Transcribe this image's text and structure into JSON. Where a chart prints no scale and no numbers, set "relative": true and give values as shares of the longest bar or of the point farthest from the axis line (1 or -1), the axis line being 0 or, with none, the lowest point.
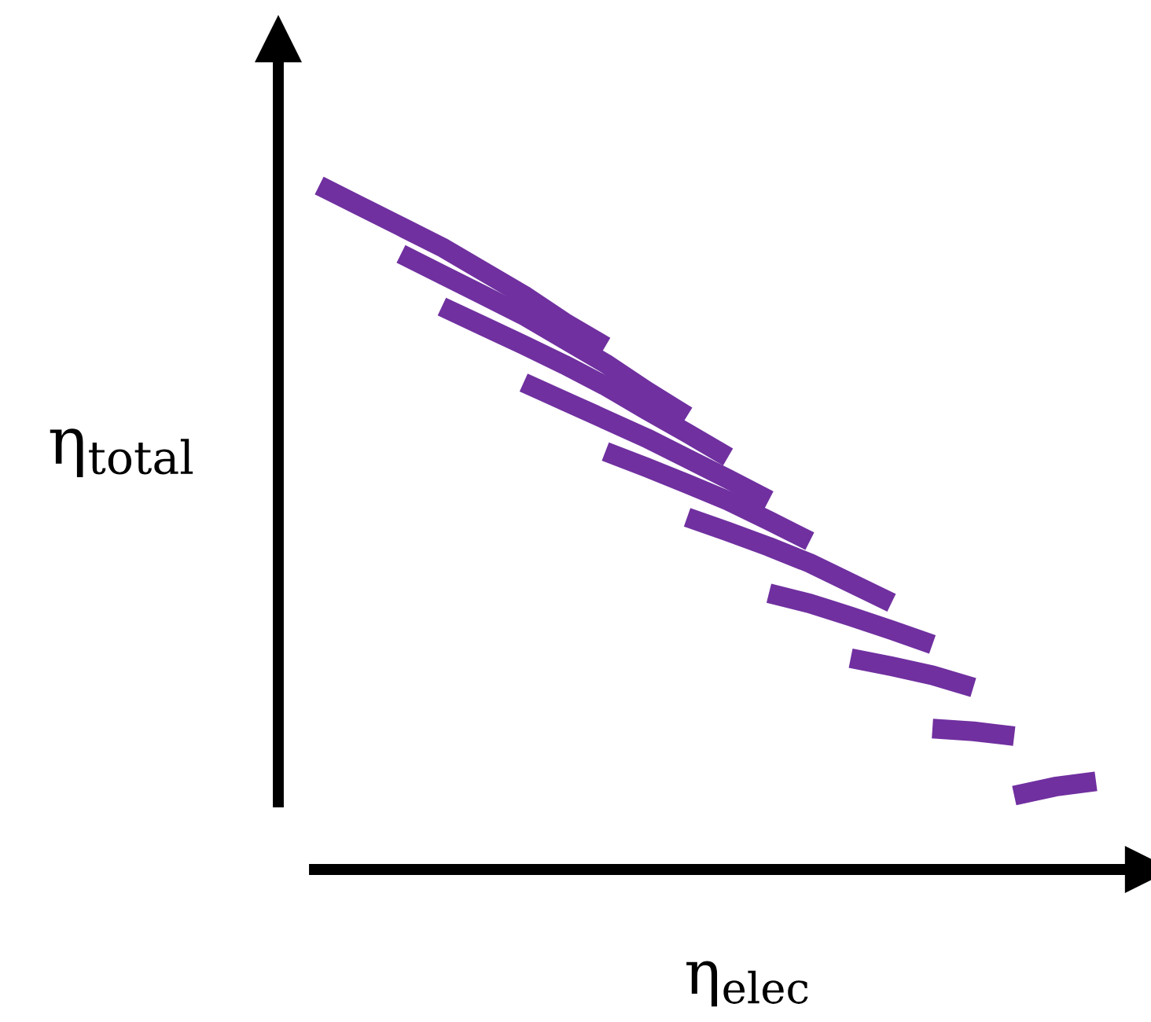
{
  "chart_data": {
    "type": "line",
    "relative": true,
    "xlabel": "η$_{elec}$",
    "ylabel": "η$_{total}$",
    "legend": false,
    "marker": "none",
    "line_style": "solid",
    "categories": [
      null,
      null,
      null,
      null,
      null,
      null,
      null,
      null,
      null,
      null,
      null,
      null,
      null,
      null,
      null,
      null,
      null,
      null,
      null,
      null,
      null
    ],
    "series": [
      {
        "color": "#7030a0",
        "values": [
          null,
          1.0,
          0.97,
          0.94,
          0.91,
          0.875,
          0.84,
          0.8,
          0.765,
          null,
          null,
          null,
          null,
          null,
          null,
          null,
          null,
          null,
          null,
          null,
          null
        ]
      },
      {
        "color": "#7030a0",
        "values": [
          null,
          null,
          null,
          0.9,
          0.87,
          0.84,
          0.81,
          0.775,
          0.74,
          0.7,
          0.663,
          null,
          null,
          null,
          null,
          null,
          null,
          null,
          null,
          null,
          null
        ]
      },
      {
        "color": "#7030a0",
        "values": [
          null,
          null,
          null,
          null,
          0.823,
          0.795,
          0.767,
          0.738,
          0.707,
          0.672,
          0.638,
          0.603,
          null,
          null,
          null,
          null,
          null,
          null,
          null,
          null,
          null
        ]
      },
      {
        "color": "#7030a0",
        "values": [
          null,
          null,
          null,
          null,
          null,
          null,
          0.712,
          0.685,
          0.658,
          0.631,
          0.601,
          0.571,
          0.54,
          null,
          null,
          null,
          null,
          null,
          null,
          null,
          null
        ]
      },
      {
        "color": "#7030a0",
        "values": [
          null,
          null,
          null,
          null,
          null,
          null,
          null,
          null,
          0.611,
          0.588,
          0.564,
          0.539,
          0.51,
          0.48,
          null,
          null,
          null,
          null,
          null,
          null,
          null
        ]
      },
      {
        "color": "#7030a0",
        "values": [
          null,
          null,
          null,
          null,
          null,
          null,
          null,
          null,
          null,
          null,
          0.515,
          0.494,
          0.472,
          0.448,
          0.419,
          0.39,
          null,
          null,
          null,
          null,
          null
        ]
      },
      {
        "color": "#7030a0",
        "values": [
          null,
          null,
          null,
          null,
          null,
          null,
          null,
          null,
          null,
          null,
          null,
          null,
          0.404,
          0.389,
          0.37,
          0.35,
          0.329,
          null,
          null,
          null,
          null
        ]
      },
      {
        "color": "#7030a0",
        "values": [
          null,
          null,
          null,
          null,
          null,
          null,
          null,
          null,
          null,
          null,
          null,
          null,
          null,
          null,
          0.309,
          0.297,
          0.284,
          0.266,
          null,
          null,
          null
        ]
      },
      {
        "color": "#7030a0",
        "values": [
          null,
          null,
          null,
          null,
          null,
          null,
          null,
          null,
          null,
          null,
          null,
          null,
          null,
          null,
          null,
          null,
          0.206,
          0.202,
          0.195,
          null,
          null
        ]
      },
      {
        "color": "#7030a0",
        "values": [
          null,
          null,
          null,
          null,
          null,
          null,
          null,
          null,
          null,
          null,
          null,
          null,
          null,
          null,
          null,
          null,
          null,
          null,
          0.108,
          0.121,
          0.129
        ]
      }
    ]
  }
}
